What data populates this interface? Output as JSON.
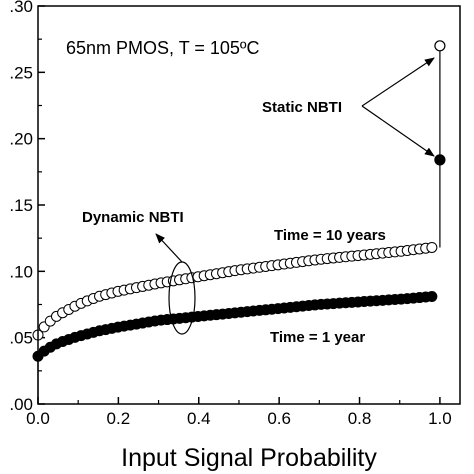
{
  "chart_data": {
    "type": "scatter",
    "title": "65nm PMOS, T = 105ºC",
    "xlabel": "Input Signal Probability",
    "ylabel": "",
    "xlim": [
      0.0,
      1.05
    ],
    "ylim": [
      0.0,
      0.3
    ],
    "x_ticks": [
      "0.0",
      "0.2",
      "0.4",
      "0.6",
      "0.8",
      "1.0"
    ],
    "y_ticks": [
      ".00",
      ".05",
      ".10",
      ".15",
      ".20",
      ".25",
      ".30"
    ],
    "series": [
      {
        "name": "Time = 10 years",
        "marker": "open-circle",
        "x": [
          0.0,
          0.02,
          0.05,
          0.1,
          0.15,
          0.2,
          0.3,
          0.4,
          0.5,
          0.6,
          0.7,
          0.8,
          0.9,
          0.98
        ],
        "y": [
          0.052,
          0.06,
          0.067,
          0.075,
          0.081,
          0.085,
          0.091,
          0.096,
          0.101,
          0.105,
          0.109,
          0.112,
          0.115,
          0.118
        ]
      },
      {
        "name": "Time = 1 year",
        "marker": "filled-circle",
        "x": [
          0.0,
          0.02,
          0.05,
          0.1,
          0.15,
          0.2,
          0.3,
          0.4,
          0.5,
          0.6,
          0.7,
          0.8,
          0.9,
          0.98
        ],
        "y": [
          0.036,
          0.041,
          0.046,
          0.051,
          0.055,
          0.058,
          0.063,
          0.066,
          0.069,
          0.072,
          0.075,
          0.077,
          0.079,
          0.081
        ]
      },
      {
        "name": "Static NBTI",
        "marker": "mixed",
        "x": [
          1.0,
          1.0
        ],
        "y": [
          0.27,
          0.184
        ]
      }
    ],
    "annotations": {
      "dynamic": "Dynamic NBTI",
      "static": "Static NBTI",
      "ten_years": "Time = 10 years",
      "one_year": "Time = 1 year"
    },
    "grid": false,
    "legend": "none"
  }
}
